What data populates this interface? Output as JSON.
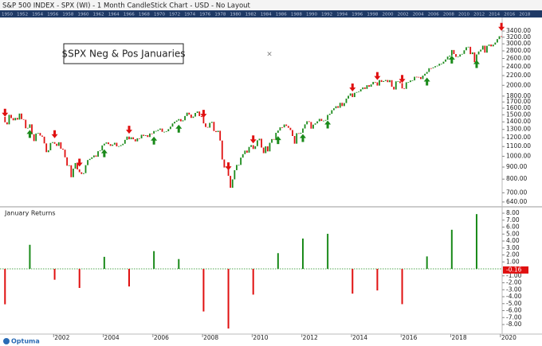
{
  "window": {
    "title": "S&P 500 INDEX - SPX (WI) - 1 Month CandleStick Chart - USD - No Layout"
  },
  "navigator": {
    "years": [
      1950,
      1952,
      1954,
      1956,
      1958,
      1960,
      1962,
      1964,
      1966,
      1968,
      1970,
      1972,
      1974,
      1976,
      1978,
      1980,
      1982,
      1984,
      1986,
      1988,
      1990,
      1992,
      1994,
      1996,
      1998,
      2000,
      2002,
      2004,
      2006,
      2008,
      2010,
      2012,
      2014,
      2016,
      2018
    ]
  },
  "footer": {
    "brand": "Optuma"
  },
  "chart_data": [
    {
      "type": "candlestick",
      "annotation": "$SPX Neg & Pos Januaries",
      "log_scale": true,
      "up_color": "#1a8a1a",
      "down_color": "#e01010",
      "xlim": [
        1999.84,
        2020.07
      ],
      "ylim": [
        620,
        3820
      ],
      "yticks": [
        {
          "value": 640,
          "label": "640.00"
        },
        {
          "value": 700,
          "label": "700.00"
        },
        {
          "value": 800,
          "label": "800.00"
        },
        {
          "value": 900,
          "label": "900.00"
        },
        {
          "value": 1000,
          "label": "1000.00"
        },
        {
          "value": 1100,
          "label": "1100.00"
        },
        {
          "value": 1200,
          "label": "1200.00"
        },
        {
          "value": 1300,
          "label": "1300.00"
        },
        {
          "value": 1400,
          "label": "1400.00"
        },
        {
          "value": 1500,
          "label": "1500.00"
        },
        {
          "value": 1600,
          "label": "1600.00"
        },
        {
          "value": 1700,
          "label": "1700.00"
        },
        {
          "value": 1800,
          "label": "1800.00"
        },
        {
          "value": 2000,
          "label": "2000.00"
        },
        {
          "value": 2200,
          "label": "2200.00"
        },
        {
          "value": 2400,
          "label": "2400.00"
        },
        {
          "value": 2600,
          "label": "2600.00"
        },
        {
          "value": 2800,
          "label": "2800.00"
        },
        {
          "value": 3000,
          "label": "3000.00"
        },
        {
          "value": 3200,
          "label": "3200.00"
        },
        {
          "value": 3400,
          "label": "3400.00"
        }
      ],
      "x": [
        "1999-12",
        "2000-01",
        "2000-02",
        "2000-03",
        "2000-04",
        "2000-05",
        "2000-06",
        "2000-07",
        "2000-08",
        "2000-09",
        "2000-10",
        "2000-11",
        "2000-12",
        "2001-01",
        "2001-02",
        "2001-03",
        "2001-04",
        "2001-05",
        "2001-06",
        "2001-07",
        "2001-08",
        "2001-09",
        "2001-10",
        "2001-11",
        "2001-12",
        "2002-01",
        "2002-02",
        "2002-03",
        "2002-04",
        "2002-05",
        "2002-06",
        "2002-07",
        "2002-08",
        "2002-09",
        "2002-10",
        "2002-11",
        "2002-12",
        "2003-01",
        "2003-02",
        "2003-03",
        "2003-04",
        "2003-05",
        "2003-06",
        "2003-07",
        "2003-08",
        "2003-09",
        "2003-10",
        "2003-11",
        "2003-12",
        "2004-01",
        "2004-02",
        "2004-03",
        "2004-04",
        "2004-05",
        "2004-06",
        "2004-07",
        "2004-08",
        "2004-09",
        "2004-10",
        "2004-11",
        "2004-12",
        "2005-01",
        "2005-02",
        "2005-03",
        "2005-04",
        "2005-05",
        "2005-06",
        "2005-07",
        "2005-08",
        "2005-09",
        "2005-10",
        "2005-11",
        "2005-12",
        "2006-01",
        "2006-02",
        "2006-03",
        "2006-04",
        "2006-05",
        "2006-06",
        "2006-07",
        "2006-08",
        "2006-09",
        "2006-10",
        "2006-11",
        "2006-12",
        "2007-01",
        "2007-02",
        "2007-03",
        "2007-04",
        "2007-05",
        "2007-06",
        "2007-07",
        "2007-08",
        "2007-09",
        "2007-10",
        "2007-11",
        "2007-12",
        "2008-01",
        "2008-02",
        "2008-03",
        "2008-04",
        "2008-05",
        "2008-06",
        "2008-07",
        "2008-08",
        "2008-09",
        "2008-10",
        "2008-11",
        "2008-12",
        "2009-01",
        "2009-02",
        "2009-03",
        "2009-04",
        "2009-05",
        "2009-06",
        "2009-07",
        "2009-08",
        "2009-09",
        "2009-10",
        "2009-11",
        "2009-12",
        "2010-01",
        "2010-02",
        "2010-03",
        "2010-04",
        "2010-05",
        "2010-06",
        "2010-07",
        "2010-08",
        "2010-09",
        "2010-10",
        "2010-11",
        "2010-12",
        "2011-01",
        "2011-02",
        "2011-03",
        "2011-04",
        "2011-05",
        "2011-06",
        "2011-07",
        "2011-08",
        "2011-09",
        "2011-10",
        "2011-11",
        "2011-12",
        "2012-01",
        "2012-02",
        "2012-03",
        "2012-04",
        "2012-05",
        "2012-06",
        "2012-07",
        "2012-08",
        "2012-09",
        "2012-10",
        "2012-11",
        "2012-12",
        "2013-01",
        "2013-02",
        "2013-03",
        "2013-04",
        "2013-05",
        "2013-06",
        "2013-07",
        "2013-08",
        "2013-09",
        "2013-10",
        "2013-11",
        "2013-12",
        "2014-01",
        "2014-02",
        "2014-03",
        "2014-04",
        "2014-05",
        "2014-06",
        "2014-07",
        "2014-08",
        "2014-09",
        "2014-10",
        "2014-11",
        "2014-12",
        "2015-01",
        "2015-02",
        "2015-03",
        "2015-04",
        "2015-05",
        "2015-06",
        "2015-07",
        "2015-08",
        "2015-09",
        "2015-10",
        "2015-11",
        "2015-12",
        "2016-01",
        "2016-02",
        "2016-03",
        "2016-04",
        "2016-05",
        "2016-06",
        "2016-07",
        "2016-08",
        "2016-09",
        "2016-10",
        "2016-11",
        "2016-12",
        "2017-01",
        "2017-02",
        "2017-03",
        "2017-04",
        "2017-05",
        "2017-06",
        "2017-07",
        "2017-08",
        "2017-09",
        "2017-10",
        "2017-11",
        "2017-12",
        "2018-01",
        "2018-02",
        "2018-03",
        "2018-04",
        "2018-05",
        "2018-06",
        "2018-07",
        "2018-08",
        "2018-09",
        "2018-10",
        "2018-11",
        "2018-12",
        "2019-01",
        "2019-02",
        "2019-03",
        "2019-04",
        "2019-05",
        "2019-06",
        "2019-07",
        "2019-08",
        "2019-09",
        "2019-10",
        "2019-11",
        "2019-12",
        "2020-01"
      ],
      "values": [
        1469,
        1394,
        1366,
        1499,
        1452,
        1421,
        1455,
        1431,
        1518,
        1437,
        1429,
        1315,
        1320,
        1366,
        1240,
        1160,
        1249,
        1256,
        1224,
        1211,
        1134,
        1041,
        1060,
        1139,
        1148,
        1130,
        1107,
        1147,
        1077,
        1067,
        990,
        912,
        916,
        815,
        886,
        936,
        880,
        856,
        841,
        848,
        917,
        964,
        975,
        990,
        1008,
        996,
        1051,
        1058,
        1112,
        1131,
        1145,
        1126,
        1107,
        1121,
        1141,
        1102,
        1104,
        1115,
        1130,
        1174,
        1212,
        1181,
        1204,
        1181,
        1157,
        1192,
        1191,
        1234,
        1220,
        1229,
        1207,
        1249,
        1248,
        1280,
        1281,
        1295,
        1311,
        1270,
        1270,
        1277,
        1304,
        1336,
        1378,
        1401,
        1418,
        1438,
        1407,
        1421,
        1482,
        1531,
        1503,
        1455,
        1474,
        1527,
        1549,
        1481,
        1468,
        1379,
        1331,
        1323,
        1386,
        1400,
        1280,
        1267,
        1283,
        1166,
        969,
        896,
        903,
        826,
        735,
        798,
        873,
        919,
        919,
        987,
        1021,
        1057,
        1036,
        1096,
        1115,
        1074,
        1104,
        1169,
        1187,
        1089,
        1031,
        1102,
        1049,
        1141,
        1183,
        1181,
        1258,
        1286,
        1327,
        1326,
        1364,
        1345,
        1321,
        1292,
        1219,
        1131,
        1253,
        1247,
        1258,
        1312,
        1366,
        1408,
        1398,
        1310,
        1362,
        1379,
        1407,
        1441,
        1412,
        1416,
        1426,
        1498,
        1515,
        1569,
        1598,
        1631,
        1606,
        1686,
        1633,
        1682,
        1757,
        1806,
        1848,
        1783,
        1859,
        1872,
        1884,
        1924,
        1960,
        1931,
        2003,
        1972,
        2018,
        2068,
        2059,
        1995,
        2105,
        2068,
        2086,
        2107,
        2063,
        2104,
        1972,
        1920,
        2079,
        2080,
        2044,
        1940,
        1932,
        2060,
        2065,
        2097,
        2099,
        2174,
        2171,
        2168,
        2126,
        2199,
        2239,
        2279,
        2364,
        2363,
        2384,
        2412,
        2423,
        2470,
        2472,
        2519,
        2575,
        2648,
        2674,
        2824,
        2714,
        2641,
        2648,
        2705,
        2718,
        2816,
        2902,
        2914,
        2712,
        2760,
        2507,
        2704,
        2784,
        2834,
        2946,
        2752,
        2942,
        2980,
        2926,
        2977,
        3038,
        3141,
        3231,
        3226
      ]
    },
    {
      "type": "bar",
      "title": "January Returns",
      "pos_color": "#1a8a1a",
      "neg_color": "#e01010",
      "last_value": -0.16,
      "xlim": [
        1999.84,
        2020.07
      ],
      "xticks": [
        2002,
        2004,
        2006,
        2008,
        2010,
        2012,
        2014,
        2016,
        2018,
        2020
      ],
      "ylim": [
        -9.14,
        8.69
      ],
      "yticks": [
        {
          "value": 8,
          "label": "8.00"
        },
        {
          "value": 7,
          "label": "7.00"
        },
        {
          "value": 6,
          "label": "6.00"
        },
        {
          "value": 5,
          "label": "5.00"
        },
        {
          "value": 4,
          "label": "4.00"
        },
        {
          "value": 3,
          "label": "3.00"
        },
        {
          "value": 2,
          "label": "2.00"
        },
        {
          "value": 1,
          "label": "1.00"
        },
        {
          "value": -1,
          "label": "-1.00"
        },
        {
          "value": -2,
          "label": "-2.00"
        },
        {
          "value": -3,
          "label": "-3.00"
        },
        {
          "value": -4,
          "label": "-4.00"
        },
        {
          "value": -5,
          "label": "-5.00"
        },
        {
          "value": -6,
          "label": "-6.00"
        },
        {
          "value": -7,
          "label": "-7.00"
        },
        {
          "value": -8,
          "label": "-8.00"
        }
      ],
      "x": [
        2000,
        2001,
        2002,
        2003,
        2004,
        2005,
        2006,
        2007,
        2008,
        2009,
        2010,
        2011,
        2012,
        2013,
        2014,
        2015,
        2016,
        2017,
        2018,
        2019
      ],
      "values": [
        -5.09,
        3.46,
        -1.56,
        -2.74,
        1.73,
        -2.53,
        2.55,
        1.41,
        -6.12,
        -8.57,
        -3.7,
        2.26,
        4.36,
        5.04,
        -3.56,
        -3.1,
        -5.07,
        1.79,
        5.62,
        7.87
      ]
    }
  ]
}
